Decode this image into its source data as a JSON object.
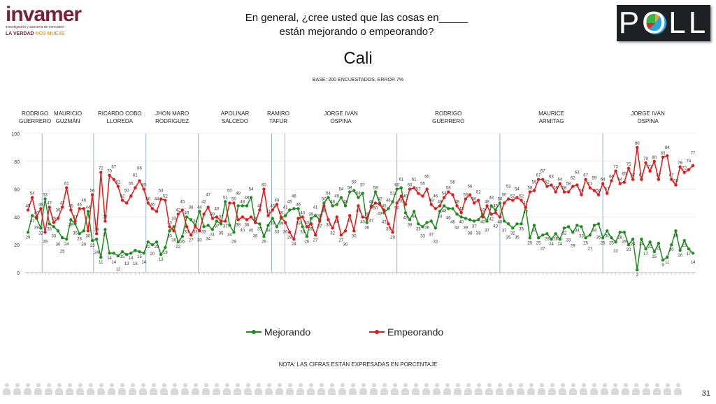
{
  "header": {
    "logo_text": "invamer",
    "logo_subtitle": "investigación y asesoría de mercadeo",
    "logo_tagline_a": "LA VERDAD",
    "logo_tagline_b": "NOS MUEVE",
    "poll_logo": "POLL",
    "question_line1": "En general, ¿cree usted que las cosas en_____",
    "question_line2": "están mejorando o empeorando?",
    "city": "Cali",
    "base": "BASE: 200 ENCUESTADOS, ERROR 7%"
  },
  "chart_data": {
    "type": "line",
    "title": "Cali",
    "ylim": [
      0,
      100
    ],
    "yticks": [
      0,
      20,
      40,
      60,
      80,
      100
    ],
    "grid": true,
    "legend_position": "bottom",
    "periods": [
      {
        "name": "RODRIGO GUERRERO",
        "start": 0
      },
      {
        "name": "MAURICIO GUZMÁN",
        "start": 3.3
      },
      {
        "name": "RICARDO COBO LLOREDA",
        "start": 15.3
      },
      {
        "name": "JHON MARO RODRIGUEZ",
        "start": 27.5
      },
      {
        "name": "APOLINAR SALCEDO",
        "start": 39.7
      },
      {
        "name": "RAMIRO TAFUR",
        "start": 56.8
      },
      {
        "name": "JORGE IVÁN OSPINA",
        "start": 59.9
      },
      {
        "name": "RODRIGO GUERRERO",
        "start": 86
      },
      {
        "name": "MAURICE ARMITAG",
        "start": 110
      },
      {
        "name": "JORGE IVÁN OSPINA",
        "start": 134
      }
    ],
    "series": [
      {
        "name": "Mejorando",
        "color": "#1e8c1e",
        "values": [
          29,
          41,
          39,
          32,
          53,
          35,
          33,
          30,
          25,
          24,
          38,
          35,
          28,
          30,
          44,
          23,
          24,
          11,
          31,
          14,
          14,
          12,
          15,
          13,
          14,
          16,
          15,
          14,
          22,
          20,
          22,
          13,
          18,
          30,
          33,
          22,
          26,
          40,
          38,
          34,
          44,
          33,
          34,
          31,
          37,
          35,
          51,
          34,
          29,
          48,
          48,
          48,
          54,
          36,
          35,
          26,
          34,
          39,
          33,
          39,
          41,
          45,
          46,
          46,
          33,
          26,
          39,
          41,
          38,
          50,
          54,
          48,
          49,
          54,
          48,
          58,
          59,
          54,
          57,
          36,
          48,
          58,
          50,
          43,
          46,
          51,
          60,
          61,
          43,
          38,
          44,
          35,
          33,
          36,
          37,
          32,
          44,
          48,
          46,
          46,
          42,
          40,
          39,
          38,
          37,
          38,
          42,
          37,
          48,
          45,
          50,
          37,
          35,
          32,
          35,
          35,
          47,
          25,
          34,
          25,
          27,
          28,
          24,
          28,
          24,
          32,
          33,
          29,
          34,
          33,
          25,
          27,
          34,
          35,
          25,
          30,
          25,
          22,
          29,
          29,
          20,
          24,
          2,
          24,
          17,
          22,
          15,
          21,
          9,
          11,
          20,
          30,
          16,
          23,
          17,
          14
        ]
      },
      {
        "name": "Empeorando",
        "color": "#e81818",
        "values": [
          45,
          54,
          40,
          46,
          29,
          47,
          36,
          39,
          47,
          61,
          45,
          37,
          46,
          46,
          30,
          56,
          28,
          72,
          37,
          70,
          67,
          62,
          52,
          50,
          55,
          61,
          66,
          60,
          50,
          46,
          44,
          53,
          52,
          33,
          30,
          42,
          45,
          33,
          27,
          33,
          30,
          42,
          47,
          39,
          40,
          37,
          37,
          50,
          50,
          38,
          40,
          38,
          40,
          36,
          45,
          60,
          41,
          45,
          49,
          40,
          36,
          29,
          24,
          39,
          40,
          33,
          35,
          27,
          37,
          48,
          38,
          32,
          40,
          27,
          30,
          41,
          30,
          48,
          40,
          39,
          47,
          50,
          49,
          45,
          35,
          29,
          50,
          55,
          49,
          60,
          61,
          57,
          55,
          60,
          49,
          46,
          48,
          54,
          58,
          56,
          48,
          43,
          53,
          56,
          50,
          52,
          40,
          48,
          42,
          43,
          40,
          50,
          53,
          52,
          54,
          52,
          47,
          58,
          59,
          67,
          67,
          62,
          63,
          58,
          64,
          58,
          58,
          62,
          63,
          56,
          67,
          61,
          59,
          56,
          64,
          57,
          66,
          73,
          64,
          65,
          75,
          67,
          90,
          67,
          79,
          73,
          80,
          67,
          83,
          84,
          67,
          63,
          76,
          72,
          74,
          77
        ]
      }
    ]
  },
  "legend": {
    "mejorando": "Mejorando",
    "empeorando": "Empeorando"
  },
  "footer": {
    "note": "NOTA: LAS CIFRAS ESTÁN EXPRESADAS EN PORCENTAJE",
    "page": "31"
  }
}
